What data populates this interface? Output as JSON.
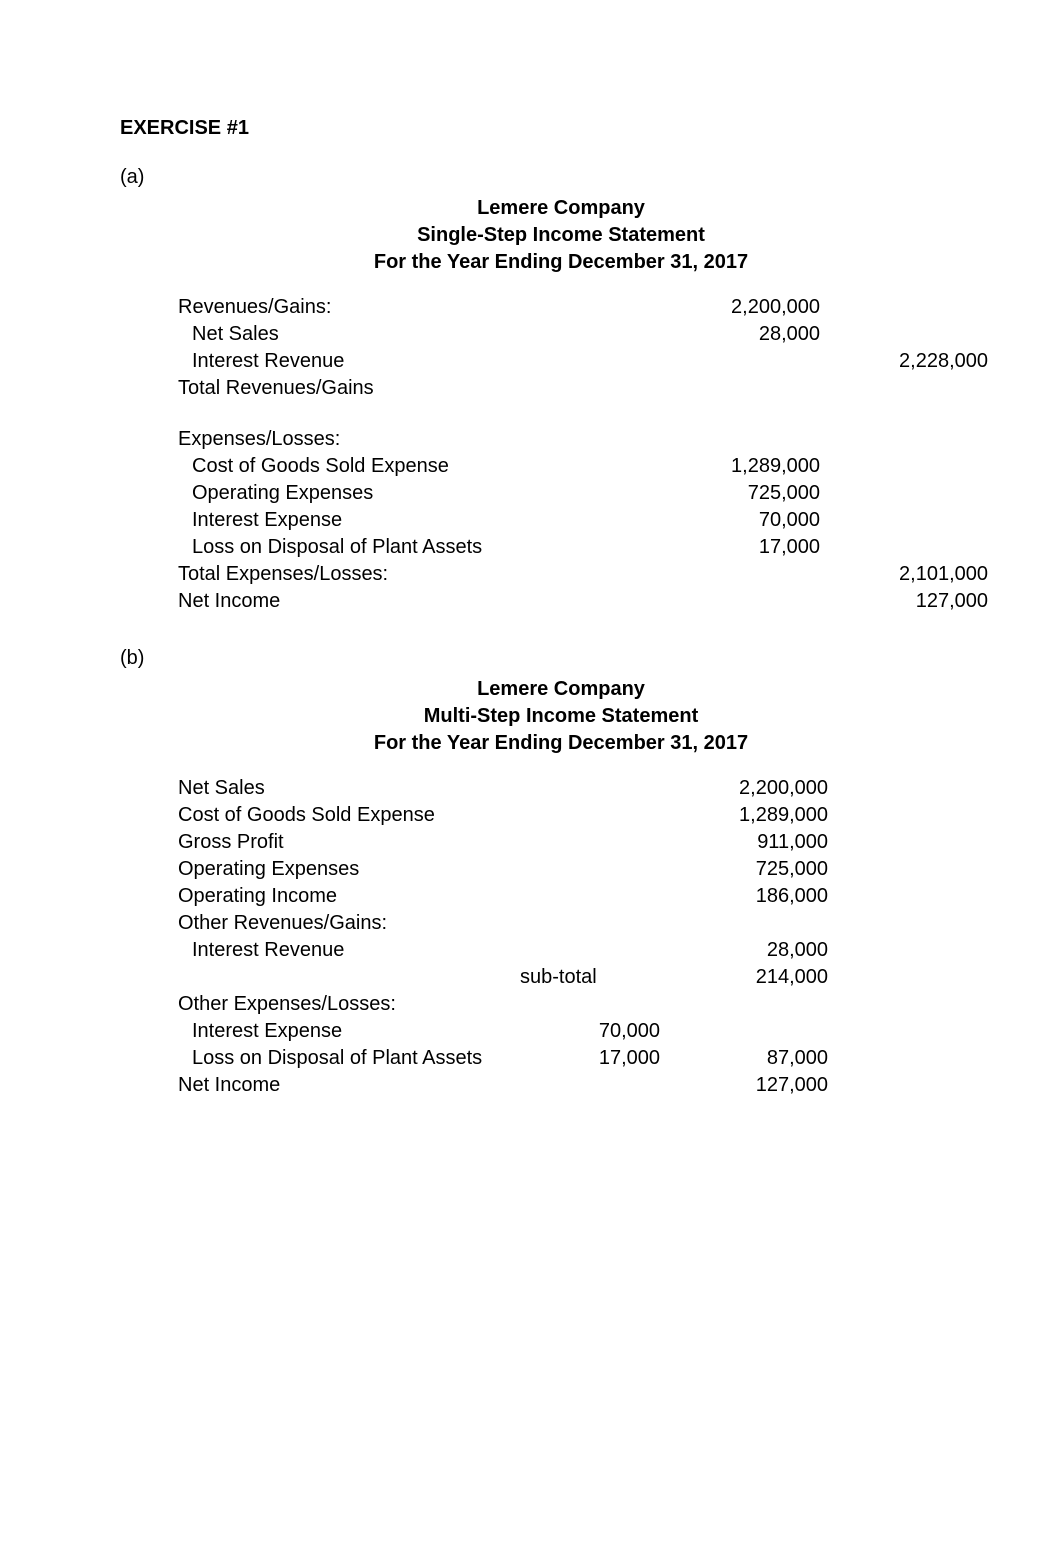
{
  "exercise_heading": "EXERCISE #1",
  "part_a_label": "(a)",
  "part_b_label": "(b)",
  "colors": {
    "background": "#ffffff",
    "text": "#000000"
  },
  "typography": {
    "font_family": "Arial, Helvetica, sans-serif",
    "base_font_size_pt": 15,
    "heading_font_weight": "bold",
    "body_font_weight": "normal"
  },
  "a": {
    "header": {
      "company": "Lemere Company",
      "title": "Single-Step Income Statement",
      "period": "For the Year Ending December 31, 2017"
    },
    "lines": {
      "revenues_heading": "Revenues/Gains:",
      "net_sales_label": "Net Sales",
      "net_sales_value": "2,200,000",
      "interest_revenue_label": "Interest Revenue",
      "interest_revenue_value": "28,000",
      "total_revenues_label": "Total Revenues/Gains",
      "total_revenues_value": "2,228,000",
      "expenses_heading": "Expenses/Losses:",
      "cogs_label": "Cost of Goods Sold Expense",
      "cogs_value": "1,289,000",
      "opex_label": "Operating Expenses",
      "opex_value": "725,000",
      "intexp_label": "Interest Expense",
      "intexp_value": "70,000",
      "loss_label": "Loss on Disposal of Plant Assets",
      "loss_value": "17,000",
      "total_exp_label": "Total Expenses/Losses:",
      "total_exp_value": "2,101,000",
      "net_income_label": "Net Income",
      "net_income_value": "127,000"
    }
  },
  "b": {
    "header": {
      "company": "Lemere Company",
      "title": "Multi-Step Income Statement",
      "period": "For the Year Ending December 31, 2017"
    },
    "lines": {
      "net_sales_label": "Net Sales",
      "net_sales_value": "2,200,000",
      "cogs_label": "Cost of Goods Sold Expense",
      "cogs_value": "1,289,000",
      "gross_profit_label": "Gross Profit",
      "gross_profit_value": "911,000",
      "opex_label": "Operating Expenses",
      "opex_value": "725,000",
      "op_income_label": "Operating Income",
      "op_income_value": "186,000",
      "other_rev_heading": "Other Revenues/Gains:",
      "int_rev_label": "Interest Revenue",
      "int_rev_value": "28,000",
      "subtotal_label": "sub-total",
      "subtotal_value": "214,000",
      "other_exp_heading": "Other Expenses/Losses:",
      "int_exp_label": "Interest Expense",
      "int_exp_value": "70,000",
      "loss_label": "Loss on Disposal of Plant Assets",
      "loss_mid_value": "17,000",
      "loss_right_value": "87,000",
      "net_income_label": "Net Income",
      "net_income_value": "127,000"
    }
  }
}
